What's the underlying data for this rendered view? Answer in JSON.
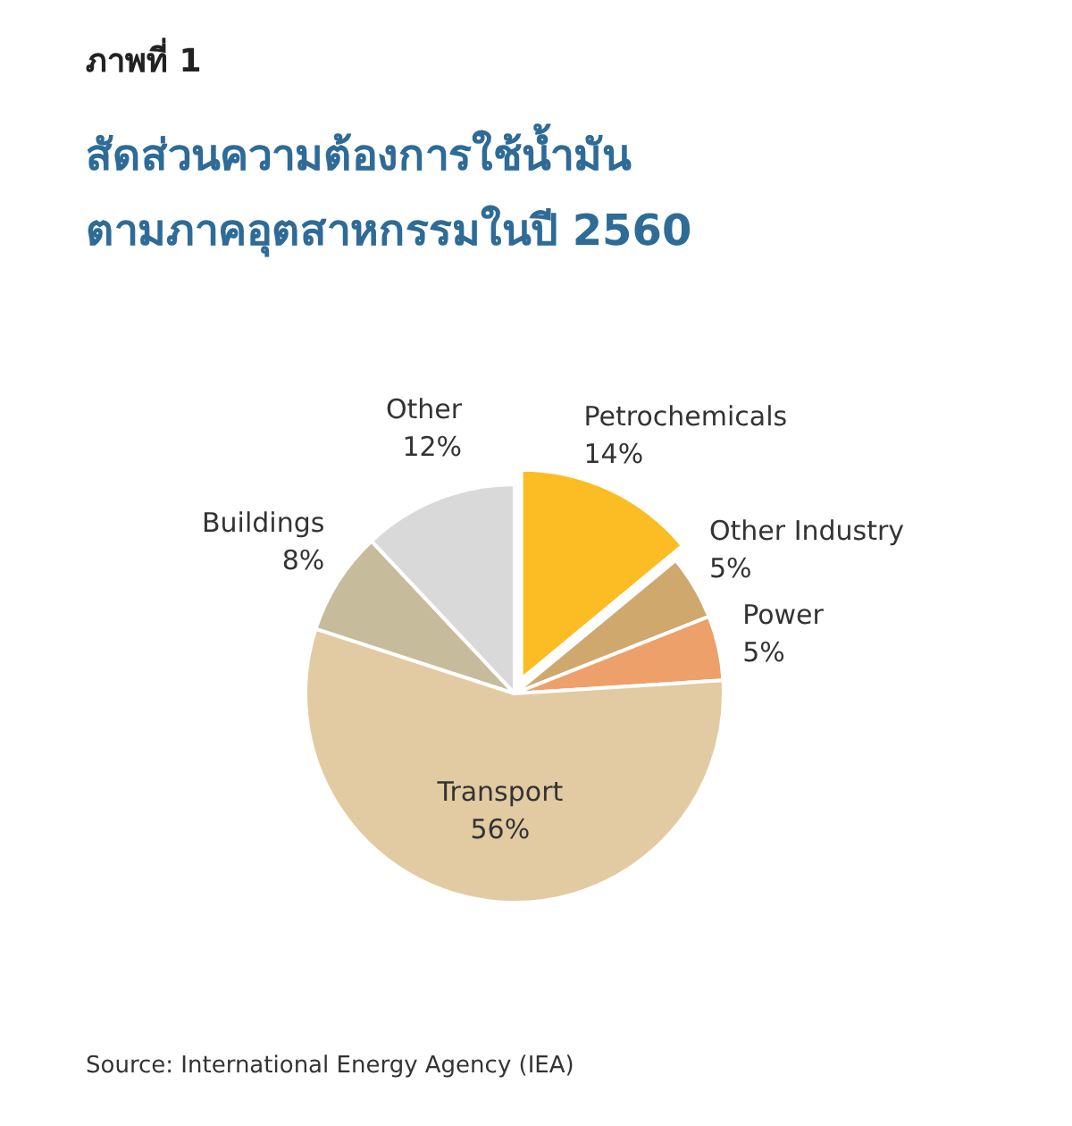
{
  "chart_data": {
    "type": "pie",
    "title": "สัดส่วนความต้องการใช้น้ำมัน\nตามภาคอุตสาหกรรมในปี 2560",
    "categories": [
      "Petrochemicals",
      "Other Industry",
      "Power",
      "Transport",
      "Buildings",
      "Other"
    ],
    "values": [
      14,
      5,
      5,
      56,
      8,
      12
    ],
    "value_labels": [
      "14%",
      "5%",
      "5%",
      "56%",
      "8%",
      "12%"
    ],
    "colors": [
      "#fbbd23",
      "#cfa86e",
      "#eda06a",
      "#e2cba2",
      "#c6bc9c",
      "#d9d9d9"
    ],
    "annotations": [
      "ภาพที่ 1",
      "Source: International Energy Agency (IEA)"
    ]
  }
}
